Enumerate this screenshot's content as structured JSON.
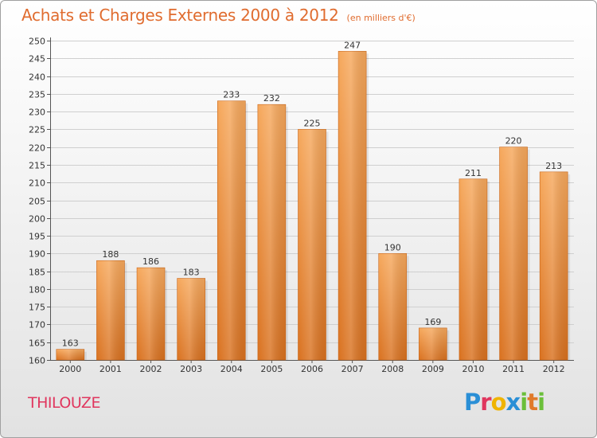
{
  "header": {
    "title": "Achats et Charges Externes 2000 à 2012",
    "subtitle": "(en milliers d'€)"
  },
  "footer": {
    "city": "THILOUZE",
    "brand": {
      "letters": [
        "P",
        "r",
        "o",
        "x",
        "i",
        "t",
        "i"
      ],
      "colors": [
        "#2a8fd6",
        "#e0365e",
        "#f0b400",
        "#2a8fd6",
        "#6bbf3a",
        "#e07a2a",
        "#6bbf3a"
      ]
    }
  },
  "colors": {
    "bar_light": "#f6a85c",
    "bar_dark": "#d9711f",
    "bar_edge": "#c9661a",
    "grid": "#cfcfcf"
  },
  "chart_data": {
    "type": "bar",
    "title": "Achats et Charges Externes 2000 à 2012",
    "subtitle": "(en milliers d'€)",
    "categories": [
      "2000",
      "2001",
      "2002",
      "2003",
      "2004",
      "2005",
      "2006",
      "2007",
      "2008",
      "2009",
      "2010",
      "2011",
      "2012"
    ],
    "values": [
      163,
      188,
      186,
      183,
      233,
      232,
      225,
      247,
      190,
      169,
      211,
      220,
      213
    ],
    "ylim": [
      160,
      250
    ],
    "ytick_step": 5,
    "grid": true,
    "data_labels": true
  }
}
